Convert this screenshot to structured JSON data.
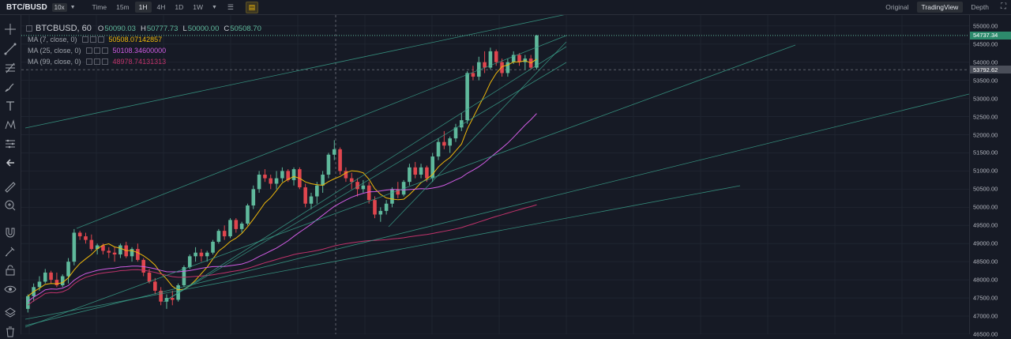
{
  "header": {
    "symbol": "BTC/BUSD",
    "leverage": "10x",
    "intervals": [
      "Time",
      "15m",
      "1H",
      "4H",
      "1D",
      "1W"
    ],
    "active_interval": "1H",
    "views": [
      "Original",
      "TradingView",
      "Depth"
    ],
    "active_view": "TradingView"
  },
  "legend": {
    "symbol_title": "BTCBUSD, 60",
    "open_label": "O",
    "open": "50090.03",
    "high_label": "H",
    "high": "50777.73",
    "low_label": "L",
    "low": "50000.00",
    "close_label": "C",
    "close": "50508.70",
    "ma": [
      {
        "name": "MA (7, close, 0)",
        "value": "50508.07142857",
        "color": "#f0b90b"
      },
      {
        "name": "MA (25, close, 0)",
        "value": "50108.34600000",
        "color": "#d05ce3"
      },
      {
        "name": "MA (99, close, 0)",
        "value": "48978.74131313",
        "color": "#c0336b"
      }
    ]
  },
  "price_axis": {
    "ticks": [
      "55000.00",
      "54500.00",
      "54000.00",
      "53500.00",
      "53000.00",
      "52500.00",
      "52000.00",
      "51500.00",
      "51000.00",
      "50500.00",
      "50000.00",
      "49500.00",
      "49000.00",
      "48500.00",
      "48000.00",
      "47500.00",
      "47000.00",
      "46500.00"
    ],
    "last_price": "54737.34",
    "crosshair_price": "53792.62"
  },
  "colors": {
    "up": "#5fb99c",
    "down": "#e0464e",
    "background": "#161a25",
    "accent": "#f0b90b"
  },
  "chart_data": {
    "type": "candlestick",
    "ylim": [
      46500,
      55300
    ],
    "candles": [
      [
        47200,
        47600,
        47100,
        47550
      ],
      [
        47550,
        47900,
        47400,
        47800
      ],
      [
        47800,
        48100,
        47700,
        47950
      ],
      [
        47950,
        48300,
        47900,
        48200
      ],
      [
        48200,
        48250,
        47900,
        48000
      ],
      [
        48000,
        48200,
        47800,
        47850
      ],
      [
        47850,
        48150,
        47800,
        48100
      ],
      [
        48100,
        48600,
        47900,
        48500
      ],
      [
        48500,
        49400,
        48400,
        49300
      ],
      [
        49300,
        49350,
        49100,
        49200
      ],
      [
        49200,
        49300,
        49000,
        49100
      ],
      [
        49100,
        49250,
        48800,
        48850
      ],
      [
        48850,
        49000,
        48700,
        48950
      ],
      [
        48950,
        49000,
        48700,
        48800
      ],
      [
        48800,
        48900,
        48600,
        48750
      ],
      [
        48750,
        48900,
        48500,
        48700
      ],
      [
        48700,
        49000,
        48600,
        48950
      ],
      [
        48950,
        49050,
        48600,
        48650
      ],
      [
        48650,
        48900,
        48500,
        48850
      ],
      [
        48850,
        49000,
        48500,
        48550
      ],
      [
        48550,
        48600,
        48100,
        48200
      ],
      [
        48200,
        48300,
        47900,
        47950
      ],
      [
        47950,
        48050,
        47600,
        47700
      ],
      [
        47700,
        47800,
        47300,
        47400
      ],
      [
        47400,
        47600,
        47200,
        47500
      ],
      [
        47500,
        47700,
        47300,
        47450
      ],
      [
        47450,
        47900,
        47400,
        47850
      ],
      [
        47850,
        48400,
        47800,
        48350
      ],
      [
        48350,
        48700,
        48300,
        48650
      ],
      [
        48650,
        48900,
        48500,
        48750
      ],
      [
        48750,
        48850,
        48500,
        48650
      ],
      [
        48650,
        48800,
        48500,
        48750
      ],
      [
        48750,
        49100,
        48700,
        49050
      ],
      [
        49050,
        49400,
        49000,
        49350
      ],
      [
        49350,
        49500,
        49100,
        49200
      ],
      [
        49200,
        49700,
        49150,
        49650
      ],
      [
        49650,
        49700,
        49300,
        49400
      ],
      [
        49400,
        49600,
        49300,
        49550
      ],
      [
        49550,
        50100,
        49500,
        50050
      ],
      [
        50050,
        50600,
        49950,
        50500
      ],
      [
        50500,
        51000,
        50400,
        50900
      ],
      [
        50900,
        51050,
        50700,
        50800
      ],
      [
        50800,
        50900,
        50500,
        50650
      ],
      [
        50650,
        51000,
        50500,
        50800
      ],
      [
        50800,
        51100,
        50700,
        51000
      ],
      [
        51000,
        51050,
        50700,
        50750
      ],
      [
        50750,
        51100,
        50600,
        51050
      ],
      [
        51050,
        51100,
        50500,
        50550
      ],
      [
        50550,
        50650,
        50000,
        50100
      ],
      [
        50100,
        50400,
        49950,
        50300
      ],
      [
        50300,
        50700,
        50100,
        50600
      ],
      [
        50600,
        51000,
        50400,
        50900
      ],
      [
        50900,
        51500,
        50800,
        51450
      ],
      [
        51450,
        51850,
        51300,
        51600
      ],
      [
        51600,
        51650,
        50900,
        51000
      ],
      [
        51000,
        51100,
        50700,
        50800
      ],
      [
        50800,
        50950,
        50500,
        50700
      ],
      [
        50700,
        50800,
        50300,
        50500
      ],
      [
        50500,
        50750,
        50400,
        50600
      ],
      [
        50600,
        50700,
        50100,
        50200
      ],
      [
        50200,
        50300,
        49700,
        49800
      ],
      [
        49800,
        50000,
        49600,
        49900
      ],
      [
        49900,
        50200,
        49800,
        50100
      ],
      [
        50100,
        50550,
        50000,
        50500
      ],
      [
        50500,
        50700,
        50250,
        50350
      ],
      [
        50350,
        50750,
        50300,
        50700
      ],
      [
        50700,
        51200,
        50600,
        51100
      ],
      [
        51100,
        51250,
        50800,
        50900
      ],
      [
        50900,
        51200,
        50800,
        51100
      ],
      [
        51100,
        51150,
        50700,
        50800
      ],
      [
        50800,
        51500,
        50700,
        51400
      ],
      [
        51400,
        51900,
        51300,
        51800
      ],
      [
        51800,
        52100,
        51600,
        51700
      ],
      [
        51700,
        51950,
        51500,
        51900
      ],
      [
        51900,
        52300,
        51800,
        52200
      ],
      [
        52200,
        52600,
        52100,
        52400
      ],
      [
        52400,
        53750,
        52300,
        53700
      ],
      [
        53700,
        53900,
        53500,
        53600
      ],
      [
        53600,
        54150,
        53500,
        54000
      ],
      [
        54000,
        54300,
        53700,
        53850
      ],
      [
        53850,
        54400,
        53800,
        54300
      ],
      [
        54300,
        54350,
        53900,
        54000
      ],
      [
        54000,
        54100,
        53600,
        53700
      ],
      [
        53700,
        54100,
        53600,
        54000
      ],
      [
        54000,
        54300,
        53950,
        54200
      ],
      [
        54200,
        54250,
        53900,
        54000
      ],
      [
        54000,
        54200,
        53800,
        54100
      ],
      [
        54100,
        54200,
        53800,
        53850
      ],
      [
        53850,
        54750,
        53800,
        54737
      ]
    ]
  }
}
